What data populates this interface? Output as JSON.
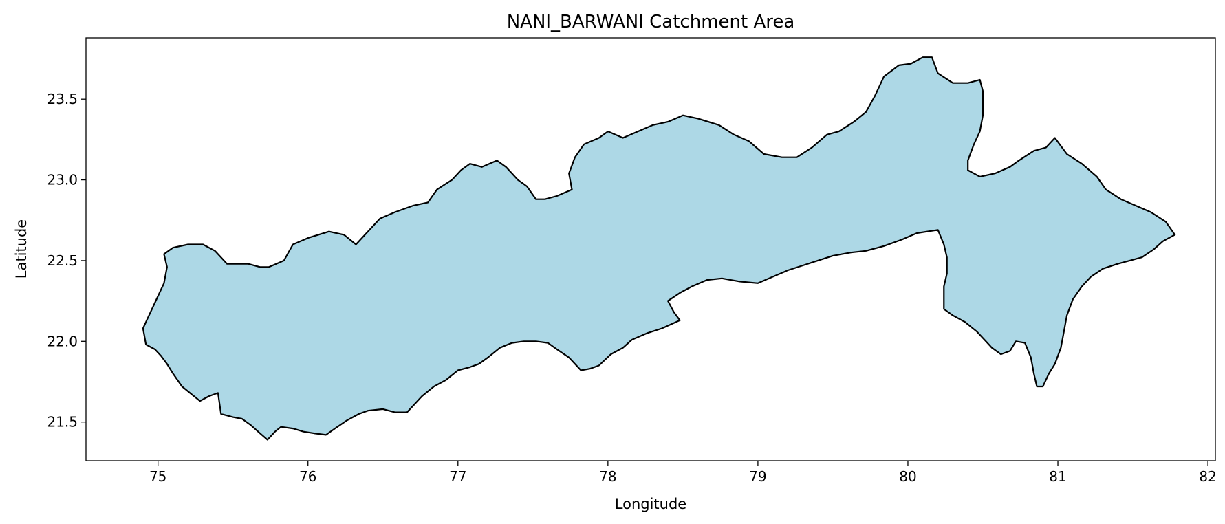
{
  "chart_data": {
    "type": "map",
    "title": "NANI_BARWANI Catchment Area",
    "xlabel": "Longitude",
    "ylabel": "Latitude",
    "xlim": [
      74.52,
      82.05
    ],
    "ylim": [
      21.26,
      23.88
    ],
    "xticks": [
      75,
      76,
      77,
      78,
      79,
      80,
      81,
      82
    ],
    "xtick_labels": [
      "75",
      "76",
      "77",
      "78",
      "79",
      "80",
      "81",
      "82"
    ],
    "yticks": [
      21.5,
      22.0,
      22.5,
      23.0,
      23.5
    ],
    "ytick_labels": [
      "21.5",
      "22.0",
      "22.5",
      "23.0",
      "23.5"
    ],
    "grid": false,
    "fill_color": "#add8e6",
    "edge_color": "#000000",
    "boundary": [
      [
        74.9,
        22.08
      ],
      [
        74.92,
        21.98
      ],
      [
        74.98,
        21.95
      ],
      [
        75.02,
        21.91
      ],
      [
        75.06,
        21.86
      ],
      [
        75.1,
        21.8
      ],
      [
        75.16,
        21.72
      ],
      [
        75.24,
        21.66
      ],
      [
        75.28,
        21.63
      ],
      [
        75.34,
        21.66
      ],
      [
        75.4,
        21.68
      ],
      [
        75.42,
        21.55
      ],
      [
        75.5,
        21.53
      ],
      [
        75.56,
        21.52
      ],
      [
        75.62,
        21.48
      ],
      [
        75.68,
        21.43
      ],
      [
        75.73,
        21.39
      ],
      [
        75.78,
        21.44
      ],
      [
        75.82,
        21.47
      ],
      [
        75.9,
        21.46
      ],
      [
        75.97,
        21.44
      ],
      [
        76.04,
        21.43
      ],
      [
        76.12,
        21.42
      ],
      [
        76.18,
        21.46
      ],
      [
        76.26,
        21.51
      ],
      [
        76.34,
        21.55
      ],
      [
        76.4,
        21.57
      ],
      [
        76.5,
        21.58
      ],
      [
        76.58,
        21.56
      ],
      [
        76.66,
        21.56
      ],
      [
        76.7,
        21.6
      ],
      [
        76.76,
        21.66
      ],
      [
        76.84,
        21.72
      ],
      [
        76.92,
        21.76
      ],
      [
        77.0,
        21.82
      ],
      [
        77.08,
        21.84
      ],
      [
        77.14,
        21.86
      ],
      [
        77.2,
        21.9
      ],
      [
        77.28,
        21.96
      ],
      [
        77.36,
        21.99
      ],
      [
        77.44,
        22.0
      ],
      [
        77.52,
        22.0
      ],
      [
        77.6,
        21.99
      ],
      [
        77.66,
        21.95
      ],
      [
        77.74,
        21.9
      ],
      [
        77.82,
        21.82
      ],
      [
        77.88,
        21.83
      ],
      [
        77.94,
        21.85
      ],
      [
        78.02,
        21.92
      ],
      [
        78.1,
        21.96
      ],
      [
        78.16,
        22.01
      ],
      [
        78.26,
        22.05
      ],
      [
        78.36,
        22.08
      ],
      [
        78.48,
        22.13
      ],
      [
        78.44,
        22.18
      ],
      [
        78.4,
        22.25
      ],
      [
        78.48,
        22.3
      ],
      [
        78.56,
        22.34
      ],
      [
        78.66,
        22.38
      ],
      [
        78.76,
        22.39
      ],
      [
        78.88,
        22.37
      ],
      [
        79.0,
        22.36
      ],
      [
        79.1,
        22.4
      ],
      [
        79.2,
        22.44
      ],
      [
        79.3,
        22.47
      ],
      [
        79.4,
        22.5
      ],
      [
        79.5,
        22.53
      ],
      [
        79.62,
        22.55
      ],
      [
        79.72,
        22.56
      ],
      [
        79.84,
        22.59
      ],
      [
        79.96,
        22.63
      ],
      [
        80.06,
        22.67
      ],
      [
        80.2,
        22.69
      ],
      [
        80.24,
        22.6
      ],
      [
        80.26,
        22.52
      ],
      [
        80.26,
        22.42
      ],
      [
        80.24,
        22.34
      ],
      [
        80.24,
        22.2
      ],
      [
        80.3,
        22.16
      ],
      [
        80.38,
        22.12
      ],
      [
        80.46,
        22.06
      ],
      [
        80.52,
        22.0
      ],
      [
        80.56,
        21.96
      ],
      [
        80.62,
        21.92
      ],
      [
        80.68,
        21.94
      ],
      [
        80.72,
        22.0
      ],
      [
        80.78,
        21.99
      ],
      [
        80.82,
        21.9
      ],
      [
        80.84,
        21.8
      ],
      [
        80.86,
        21.72
      ],
      [
        80.9,
        21.72
      ],
      [
        80.94,
        21.8
      ],
      [
        80.98,
        21.86
      ],
      [
        81.02,
        21.96
      ],
      [
        81.04,
        22.06
      ],
      [
        81.06,
        22.16
      ],
      [
        81.1,
        22.26
      ],
      [
        81.16,
        22.34
      ],
      [
        81.22,
        22.4
      ],
      [
        81.3,
        22.45
      ],
      [
        81.4,
        22.48
      ],
      [
        81.48,
        22.5
      ],
      [
        81.56,
        22.52
      ],
      [
        81.64,
        22.57
      ],
      [
        81.7,
        22.62
      ],
      [
        81.78,
        22.66
      ],
      [
        81.72,
        22.74
      ],
      [
        81.62,
        22.8
      ],
      [
        81.52,
        22.84
      ],
      [
        81.42,
        22.88
      ],
      [
        81.32,
        22.94
      ],
      [
        81.26,
        23.02
      ],
      [
        81.16,
        23.1
      ],
      [
        81.06,
        23.16
      ],
      [
        80.98,
        23.26
      ],
      [
        80.92,
        23.2
      ],
      [
        80.84,
        23.18
      ],
      [
        80.74,
        23.12
      ],
      [
        80.68,
        23.08
      ],
      [
        80.58,
        23.04
      ],
      [
        80.48,
        23.02
      ],
      [
        80.4,
        23.06
      ],
      [
        80.4,
        23.12
      ],
      [
        80.44,
        23.22
      ],
      [
        80.48,
        23.3
      ],
      [
        80.5,
        23.4
      ],
      [
        80.5,
        23.55
      ],
      [
        80.48,
        23.62
      ],
      [
        80.4,
        23.6
      ],
      [
        80.3,
        23.6
      ],
      [
        80.2,
        23.66
      ],
      [
        80.16,
        23.76
      ],
      [
        80.1,
        23.76
      ],
      [
        80.02,
        23.72
      ],
      [
        79.94,
        23.71
      ],
      [
        79.84,
        23.64
      ],
      [
        79.78,
        23.52
      ],
      [
        79.72,
        23.42
      ],
      [
        79.64,
        23.36
      ],
      [
        79.54,
        23.3
      ],
      [
        79.46,
        23.28
      ],
      [
        79.36,
        23.2
      ],
      [
        79.26,
        23.14
      ],
      [
        79.16,
        23.14
      ],
      [
        79.04,
        23.16
      ],
      [
        78.94,
        23.24
      ],
      [
        78.84,
        23.28
      ],
      [
        78.74,
        23.34
      ],
      [
        78.6,
        23.38
      ],
      [
        78.5,
        23.4
      ],
      [
        78.4,
        23.36
      ],
      [
        78.3,
        23.34
      ],
      [
        78.2,
        23.3
      ],
      [
        78.1,
        23.26
      ],
      [
        78.0,
        23.3
      ],
      [
        77.94,
        23.26
      ],
      [
        77.84,
        23.22
      ],
      [
        77.78,
        23.14
      ],
      [
        77.74,
        23.04
      ],
      [
        77.76,
        22.94
      ],
      [
        77.66,
        22.9
      ],
      [
        77.58,
        22.88
      ],
      [
        77.52,
        22.88
      ],
      [
        77.46,
        22.96
      ],
      [
        77.4,
        23.0
      ],
      [
        77.32,
        23.08
      ],
      [
        77.26,
        23.12
      ],
      [
        77.16,
        23.08
      ],
      [
        77.08,
        23.1
      ],
      [
        77.02,
        23.06
      ],
      [
        76.96,
        23.0
      ],
      [
        76.86,
        22.94
      ],
      [
        76.8,
        22.86
      ],
      [
        76.7,
        22.84
      ],
      [
        76.58,
        22.8
      ],
      [
        76.48,
        22.76
      ],
      [
        76.38,
        22.66
      ],
      [
        76.32,
        22.6
      ],
      [
        76.24,
        22.66
      ],
      [
        76.14,
        22.68
      ],
      [
        76.0,
        22.64
      ],
      [
        75.9,
        22.6
      ],
      [
        75.84,
        22.5
      ],
      [
        75.74,
        22.46
      ],
      [
        75.68,
        22.46
      ],
      [
        75.6,
        22.48
      ],
      [
        75.46,
        22.48
      ],
      [
        75.38,
        22.56
      ],
      [
        75.3,
        22.6
      ],
      [
        75.2,
        22.6
      ],
      [
        75.1,
        22.58
      ],
      [
        75.04,
        22.54
      ],
      [
        75.06,
        22.46
      ],
      [
        75.04,
        22.36
      ],
      [
        74.98,
        22.24
      ],
      [
        74.94,
        22.16
      ],
      [
        74.9,
        22.08
      ]
    ]
  }
}
